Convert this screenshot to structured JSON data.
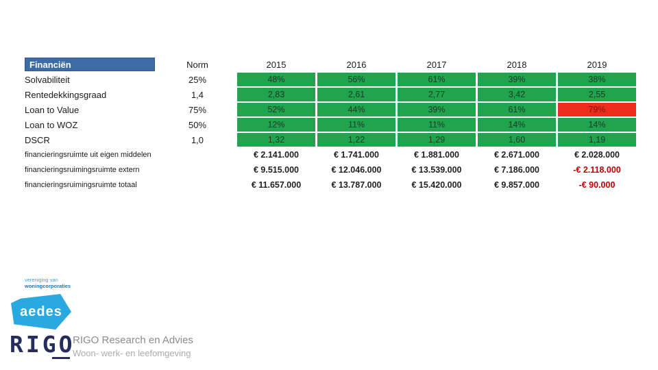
{
  "table": {
    "header_label": "Financiën",
    "norm_label": "Norm",
    "years": [
      "2015",
      "2016",
      "2017",
      "2018",
      "2019"
    ],
    "kpi_rows": [
      {
        "label": "Solvabiliteit",
        "norm": "25%",
        "values": [
          "48%",
          "56%",
          "61%",
          "39%",
          "38%"
        ],
        "status": [
          "ok",
          "ok",
          "ok",
          "ok",
          "ok"
        ]
      },
      {
        "label": "Rentedekkingsgraad",
        "norm": "1,4",
        "values": [
          "2,83",
          "2,61",
          "2,77",
          "3,42",
          "2,55"
        ],
        "status": [
          "ok",
          "ok",
          "ok",
          "ok",
          "ok"
        ]
      },
      {
        "label": "Loan to Value",
        "norm": "75%",
        "values": [
          "52%",
          "44%",
          "39%",
          "61%",
          "79%"
        ],
        "status": [
          "ok",
          "ok",
          "ok",
          "ok",
          "alert"
        ]
      },
      {
        "label": "Loan to WOZ",
        "norm": "50%",
        "values": [
          "12%",
          "11%",
          "11%",
          "14%",
          "14%"
        ],
        "status": [
          "ok",
          "ok",
          "ok",
          "ok",
          "ok"
        ]
      },
      {
        "label": "DSCR",
        "norm": "1,0",
        "values": [
          "1,32",
          "1,22",
          "1,29",
          "1,60",
          "1,19"
        ],
        "status": [
          "ok",
          "ok",
          "ok",
          "ok",
          "ok"
        ]
      }
    ],
    "money_rows": [
      {
        "label": "financieringsruimte uit eigen middelen",
        "values": [
          "€ 2.141.000",
          "€ 1.741.000",
          "€ 1.881.000",
          "€ 2.671.000",
          "€ 2.028.000"
        ],
        "negative": [
          false,
          false,
          false,
          false,
          false
        ]
      },
      {
        "label": "financieringsruimingsruimte extern",
        "values": [
          "€ 9.515.000",
          "€ 12.046.000",
          "€ 13.539.000",
          "€ 7.186.000",
          "-€ 2.118.000"
        ],
        "negative": [
          false,
          false,
          false,
          false,
          true
        ]
      },
      {
        "label": "financieringsruimingsruimte totaal",
        "values": [
          "€ 11.657.000",
          "€ 13.787.000",
          "€ 15.420.000",
          "€ 9.857.000",
          "-€ 90.000"
        ],
        "negative": [
          false,
          false,
          false,
          false,
          true
        ]
      }
    ]
  },
  "footer": {
    "aedes_tagline_line1": "vereniging van",
    "aedes_tagline_line2": "woningcorporaties",
    "aedes_logo_text": "aedes",
    "rigo_logo_text": "RIGO",
    "rigo_title": "RIGO Research en Advies",
    "rigo_subtitle": "Woon- werk- en leefomgeving"
  },
  "colors": {
    "header_blue": "#3d6ba5",
    "ok_green": "#21a44e",
    "alert_red": "#ee2c1d",
    "alert_text": "#7e150c",
    "negative_text_red": "#c00000",
    "aedes_blue": "#29a9e0",
    "aedes_tagline_light_blue": "#29abe2",
    "aedes_tagline_dark_blue": "#1b75bc",
    "rigo_navy": "#272c5e"
  }
}
